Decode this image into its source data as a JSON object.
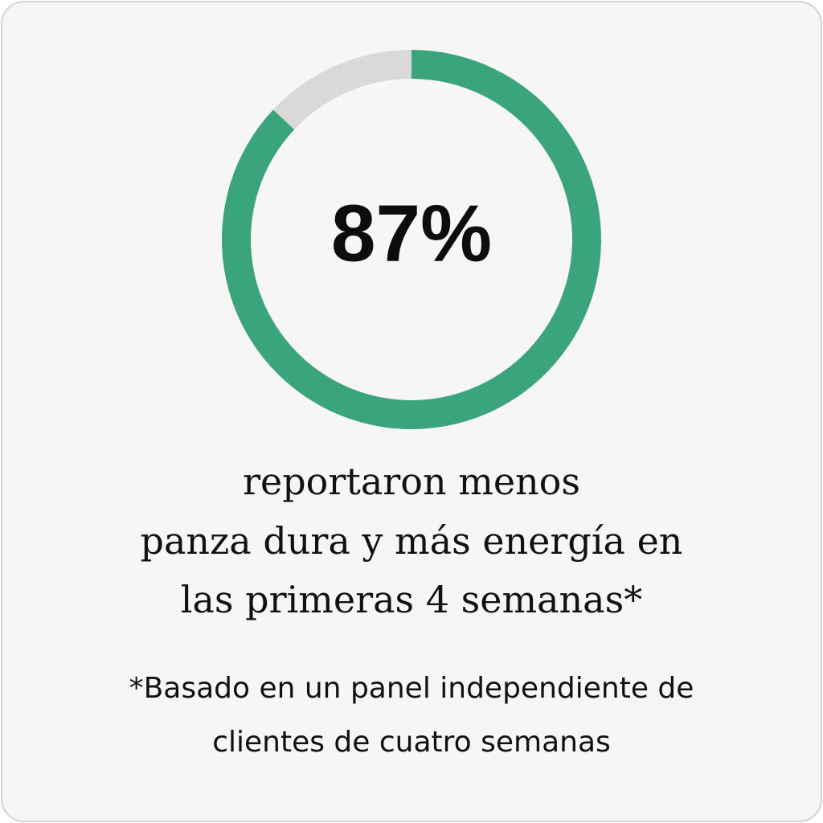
{
  "chart_data": {
    "type": "donut",
    "values": [
      87,
      13
    ],
    "value_labels": [
      "87%",
      null
    ],
    "colors": [
      "#3aa47c",
      "#d9d9d7"
    ],
    "caption": [
      "reportaron menos",
      "panza dura y más energía en",
      "las primeras 4 semanas*"
    ],
    "footnote": [
      "*Basado en un panel independiente de",
      "clientes de cuatro semanas"
    ]
  }
}
